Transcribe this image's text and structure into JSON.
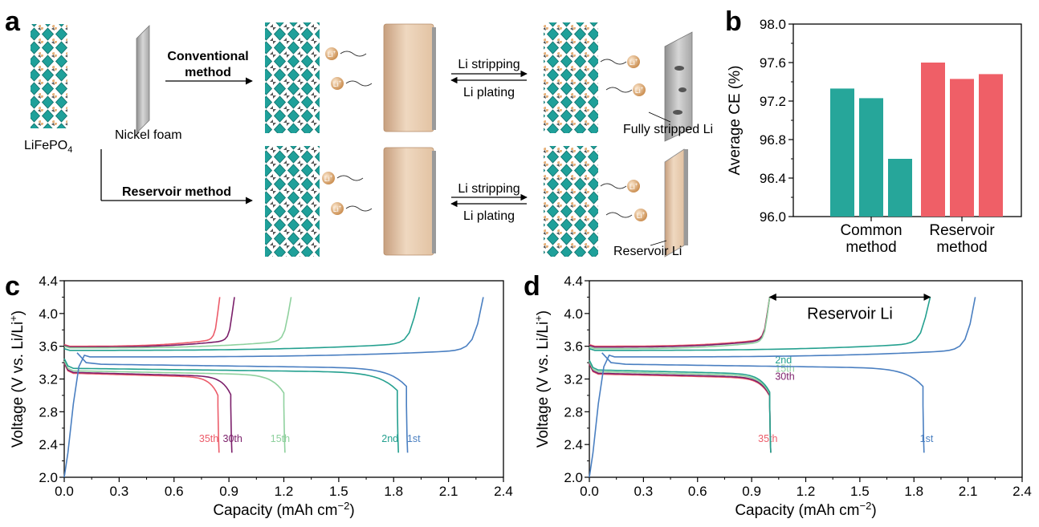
{
  "panel_letters": {
    "a": "a",
    "b": "b",
    "c": "c",
    "d": "d"
  },
  "schematic": {
    "lifepo4_label": "LiFePO",
    "lifepo4_sub": "4",
    "nickel_foam_label": "Nickel foam",
    "conventional_label_1": "Conventional",
    "conventional_label_2": "method",
    "reservoir_method_label": "Reservoir method",
    "stripping_label_top": "Li stripping",
    "plating_label_top": "Li plating",
    "stripping_label_bottom": "Li stripping",
    "plating_label_bottom": "Li plating",
    "fully_stripped_label": "Fully stripped Li",
    "reservoir_li_label": "Reservoir Li",
    "ion_label": "Li",
    "ion_sup": "+"
  },
  "chart_data": [
    {
      "id": "b",
      "type": "bar",
      "ylabel": "Average CE (%)",
      "ylim": [
        96.0,
        98.0
      ],
      "yticks": [
        "96.0",
        "96.4",
        "96.8",
        "97.2",
        "97.6",
        "98.0"
      ],
      "groups": [
        {
          "label_lines": [
            "Common",
            "method"
          ],
          "values": [
            97.33,
            97.23,
            96.6
          ],
          "color": "#26a69a"
        },
        {
          "label_lines": [
            "Reservoir",
            "method"
          ],
          "values": [
            97.6,
            97.43,
            97.48
          ],
          "color": "#ef5f67"
        }
      ]
    },
    {
      "id": "c",
      "type": "line",
      "xlabel_main": "Capacity (mAh cm",
      "xlabel_sup": "−2",
      "xlabel_end": ")",
      "ylabel_main": "Voltage (V vs. Li/Li",
      "ylabel_sup": "+",
      "ylabel_end": ")",
      "xlim": [
        0.0,
        2.4
      ],
      "ylim": [
        2.0,
        4.4
      ],
      "xticks": [
        "0.0",
        "0.3",
        "0.6",
        "0.9",
        "1.2",
        "1.5",
        "1.8",
        "2.1",
        "2.4"
      ],
      "yticks": [
        "2.0",
        "2.4",
        "2.8",
        "3.2",
        "3.6",
        "4.0",
        "4.4"
      ],
      "series": [
        {
          "name": "1st",
          "color": "#4a7fc1",
          "charge_end": 2.29,
          "charge_plateau": 3.47,
          "discharge_end": 1.87,
          "discharge_plateau": 3.38,
          "first": true,
          "label_x": 1.91
        },
        {
          "name": "2nd",
          "color": "#24a08f",
          "charge_end": 1.94,
          "charge_plateau": 3.55,
          "discharge_end": 1.82,
          "discharge_plateau": 3.33,
          "label_x": 1.78
        },
        {
          "name": "15th",
          "color": "#8fd19e",
          "charge_end": 1.24,
          "charge_plateau": 3.58,
          "discharge_end": 1.2,
          "discharge_plateau": 3.3,
          "label_x": 1.18
        },
        {
          "name": "30th",
          "color": "#7b1f6a",
          "charge_end": 0.93,
          "charge_plateau": 3.59,
          "discharge_end": 0.91,
          "discharge_plateau": 3.28,
          "label_x": 0.92
        },
        {
          "name": "35th",
          "color": "#ec5c6a",
          "charge_end": 0.85,
          "charge_plateau": 3.6,
          "discharge_end": 0.84,
          "discharge_plateau": 3.27,
          "label_x": 0.79
        }
      ]
    },
    {
      "id": "d",
      "type": "line",
      "xlabel_main": "Capacity (mAh cm",
      "xlabel_sup": "−2",
      "xlabel_end": ")",
      "ylabel_main": "Voltage (V vs. Li/Li",
      "ylabel_sup": "+",
      "ylabel_end": ")",
      "xlim": [
        0.0,
        2.4
      ],
      "ylim": [
        2.0,
        4.4
      ],
      "xticks": [
        "0.0",
        "0.3",
        "0.6",
        "0.9",
        "1.2",
        "1.5",
        "1.8",
        "2.1",
        "2.4"
      ],
      "yticks": [
        "2.0",
        "2.4",
        "2.8",
        "3.2",
        "3.6",
        "4.0",
        "4.4"
      ],
      "annotation": {
        "text": "Reservoir Li",
        "x_from": 1.0,
        "x_to": 1.89,
        "y": 4.2
      },
      "series": [
        {
          "name": "1st",
          "color": "#4a7fc1",
          "charge_end": 2.14,
          "charge_plateau": 3.47,
          "discharge_end": 1.85,
          "discharge_plateau": 3.38,
          "first": true,
          "label_x": 1.87,
          "label_y": 2.43
        },
        {
          "name": "2nd",
          "color": "#24a08f",
          "charge_end": 1.89,
          "charge_plateau": 3.55,
          "discharge_end": 1.0,
          "discharge_plateau": 3.31,
          "label_x": 1.03,
          "label_y": 3.39
        },
        {
          "name": "15th",
          "color": "#8fd19e",
          "charge_end": 1.0,
          "charge_plateau": 3.57,
          "discharge_end": 1.0,
          "discharge_plateau": 3.29,
          "label_x": 1.03,
          "label_y": 3.29
        },
        {
          "name": "30th",
          "color": "#7b1f6a",
          "charge_end": 1.0,
          "charge_plateau": 3.59,
          "discharge_end": 1.0,
          "discharge_plateau": 3.27,
          "label_x": 1.03,
          "label_y": 3.19
        },
        {
          "name": "35th",
          "color": "#ec5c6a",
          "charge_end": 1.0,
          "charge_plateau": 3.6,
          "discharge_end": 1.0,
          "discharge_plateau": 3.26,
          "label_x": 0.99,
          "label_y": 2.43
        }
      ]
    }
  ]
}
